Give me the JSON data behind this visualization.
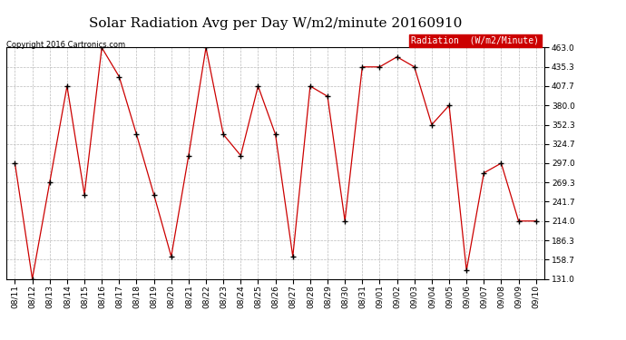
{
  "title": "Solar Radiation Avg per Day W/m2/minute 20160910",
  "copyright": "Copyright 2016 Cartronics.com",
  "legend_label": "Radiation  (W/m2/Minute)",
  "legend_bg": "#cc0000",
  "legend_text_color": "#ffffff",
  "line_color": "#cc0000",
  "marker_color": "#000000",
  "background_color": "#ffffff",
  "grid_color": "#bbbbbb",
  "dates": [
    "08/11",
    "08/12",
    "08/13",
    "08/14",
    "08/15",
    "08/16",
    "08/17",
    "08/18",
    "08/19",
    "08/20",
    "08/21",
    "08/22",
    "08/23",
    "08/24",
    "08/25",
    "08/26",
    "08/27",
    "08/28",
    "08/29",
    "08/30",
    "08/31",
    "09/01",
    "09/02",
    "09/03",
    "09/04",
    "09/05",
    "09/06",
    "09/07",
    "09/08",
    "09/09",
    "09/10"
  ],
  "values": [
    297.0,
    131.0,
    269.3,
    407.7,
    252.0,
    463.0,
    421.3,
    338.3,
    252.0,
    163.0,
    308.0,
    463.0,
    338.3,
    308.0,
    407.7,
    338.3,
    163.0,
    407.7,
    393.0,
    214.0,
    435.3,
    435.3,
    449.7,
    435.3,
    352.3,
    380.0,
    143.0,
    283.0,
    297.0,
    214.0,
    214.0
  ],
  "ylim_min": 131.0,
  "ylim_max": 463.0,
  "yticks": [
    131.0,
    158.7,
    186.3,
    214.0,
    241.7,
    269.3,
    297.0,
    324.7,
    352.3,
    380.0,
    407.7,
    435.3,
    463.0
  ],
  "title_fontsize": 11,
  "tick_fontsize": 6.5,
  "copyright_fontsize": 6,
  "legend_fontsize": 7
}
